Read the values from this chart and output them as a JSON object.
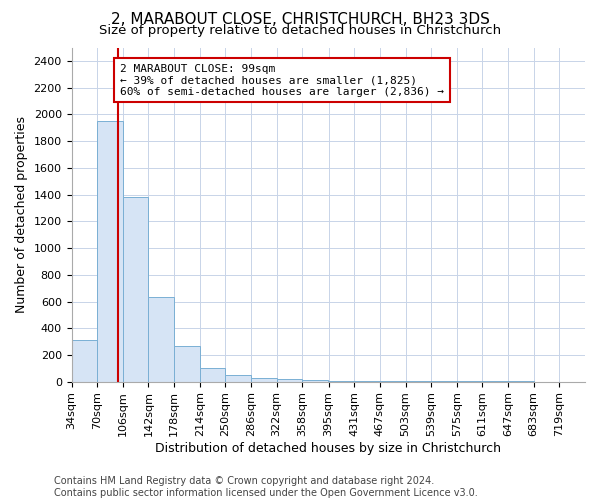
{
  "title": "2, MARABOUT CLOSE, CHRISTCHURCH, BH23 3DS",
  "subtitle": "Size of property relative to detached houses in Christchurch",
  "xlabel": "Distribution of detached houses by size in Christchurch",
  "ylabel": "Number of detached properties",
  "bin_edges": [
    34,
    70,
    106,
    142,
    178,
    214,
    250,
    286,
    322,
    358,
    395,
    431,
    467,
    503,
    539,
    575,
    611,
    647,
    683,
    719,
    755
  ],
  "bar_heights": [
    310,
    1950,
    1380,
    630,
    270,
    100,
    50,
    30,
    20,
    12,
    8,
    5,
    4,
    3,
    3,
    2,
    2,
    2,
    1,
    1
  ],
  "bar_color": "#d6e4f5",
  "bar_edge_color": "#7aafd4",
  "vertical_line_x": 99,
  "vertical_line_color": "#cc0000",
  "annotation_text_line1": "2 MARABOUT CLOSE: 99sqm",
  "annotation_text_line2": "← 39% of detached houses are smaller (1,825)",
  "annotation_text_line3": "60% of semi-detached houses are larger (2,836) →",
  "annotation_box_color": "#ffffff",
  "annotation_box_edge_color": "#cc0000",
  "ylim": [
    0,
    2500
  ],
  "yticks": [
    0,
    200,
    400,
    600,
    800,
    1000,
    1200,
    1400,
    1600,
    1800,
    2000,
    2200,
    2400
  ],
  "footer_line1": "Contains HM Land Registry data © Crown copyright and database right 2024.",
  "footer_line2": "Contains public sector information licensed under the Open Government Licence v3.0.",
  "background_color": "#ffffff",
  "grid_color": "#c8d4e8",
  "title_fontsize": 11,
  "subtitle_fontsize": 9.5,
  "axis_label_fontsize": 9,
  "tick_fontsize": 8,
  "footer_fontsize": 7,
  "annotation_fontsize": 8
}
